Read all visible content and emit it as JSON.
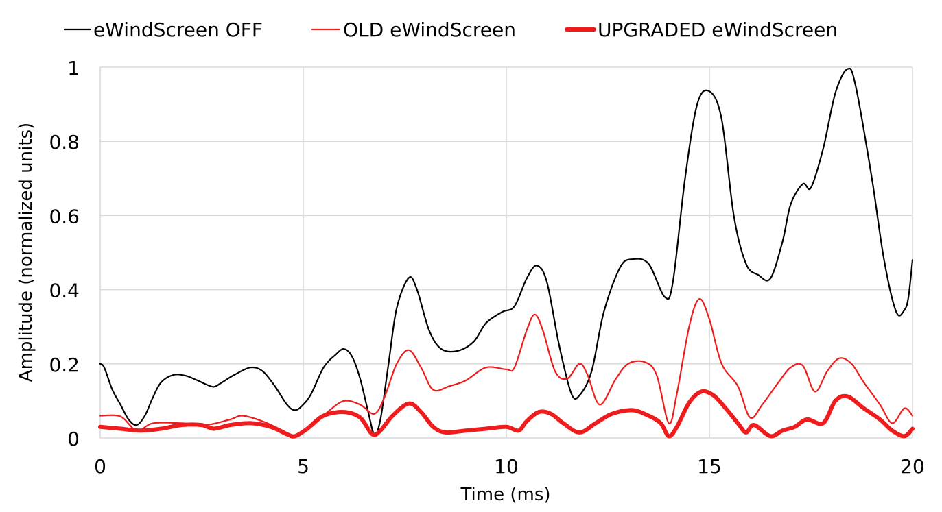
{
  "chart_data": {
    "type": "line",
    "title": "",
    "xlabel": "Time (ms)",
    "ylabel": "Amplitude (normalized units)",
    "xlim": [
      0,
      20
    ],
    "ylim": [
      0,
      1
    ],
    "x_ticks": [
      "0",
      "5",
      "10",
      "15",
      "20"
    ],
    "y_ticks": [
      "0",
      "0.2",
      "0.4",
      "0.6",
      "0.8",
      "1"
    ],
    "grid": true,
    "legend_position": "top",
    "series": [
      {
        "name": "eWindScreen OFF",
        "color": "#000000",
        "style": "thin",
        "points": [
          [
            0,
            0.2
          ],
          [
            0.1,
            0.19
          ],
          [
            0.3,
            0.13
          ],
          [
            0.5,
            0.09
          ],
          [
            0.7,
            0.05
          ],
          [
            0.9,
            0.035
          ],
          [
            1.1,
            0.06
          ],
          [
            1.3,
            0.11
          ],
          [
            1.5,
            0.15
          ],
          [
            1.8,
            0.17
          ],
          [
            2.1,
            0.168
          ],
          [
            2.4,
            0.155
          ],
          [
            2.6,
            0.145
          ],
          [
            2.8,
            0.138
          ],
          [
            3.0,
            0.15
          ],
          [
            3.3,
            0.17
          ],
          [
            3.7,
            0.19
          ],
          [
            4.0,
            0.18
          ],
          [
            4.3,
            0.14
          ],
          [
            4.6,
            0.09
          ],
          [
            4.8,
            0.075
          ],
          [
            5.0,
            0.09
          ],
          [
            5.2,
            0.12
          ],
          [
            5.5,
            0.19
          ],
          [
            5.8,
            0.225
          ],
          [
            6.0,
            0.24
          ],
          [
            6.2,
            0.22
          ],
          [
            6.4,
            0.16
          ],
          [
            6.6,
            0.07
          ],
          [
            6.75,
            0.01
          ],
          [
            6.9,
            0.05
          ],
          [
            7.1,
            0.2
          ],
          [
            7.3,
            0.35
          ],
          [
            7.6,
            0.432
          ],
          [
            7.8,
            0.4
          ],
          [
            8.1,
            0.29
          ],
          [
            8.4,
            0.24
          ],
          [
            8.8,
            0.235
          ],
          [
            9.2,
            0.26
          ],
          [
            9.5,
            0.31
          ],
          [
            9.9,
            0.34
          ],
          [
            10.2,
            0.355
          ],
          [
            10.5,
            0.43
          ],
          [
            10.75,
            0.465
          ],
          [
            11.0,
            0.42
          ],
          [
            11.3,
            0.25
          ],
          [
            11.6,
            0.12
          ],
          [
            11.8,
            0.115
          ],
          [
            12.1,
            0.18
          ],
          [
            12.4,
            0.34
          ],
          [
            12.8,
            0.46
          ],
          [
            13.1,
            0.482
          ],
          [
            13.5,
            0.47
          ],
          [
            13.9,
            0.38
          ],
          [
            14.1,
            0.42
          ],
          [
            14.4,
            0.7
          ],
          [
            14.7,
            0.9
          ],
          [
            15.0,
            0.935
          ],
          [
            15.3,
            0.86
          ],
          [
            15.6,
            0.6
          ],
          [
            15.9,
            0.47
          ],
          [
            16.2,
            0.44
          ],
          [
            16.5,
            0.43
          ],
          [
            16.8,
            0.53
          ],
          [
            17.0,
            0.63
          ],
          [
            17.3,
            0.685
          ],
          [
            17.5,
            0.675
          ],
          [
            17.8,
            0.78
          ],
          [
            18.1,
            0.93
          ],
          [
            18.4,
            0.995
          ],
          [
            18.6,
            0.95
          ],
          [
            19.0,
            0.7
          ],
          [
            19.3,
            0.48
          ],
          [
            19.6,
            0.34
          ],
          [
            19.8,
            0.345
          ],
          [
            19.9,
            0.38
          ],
          [
            20.0,
            0.48
          ]
        ]
      },
      {
        "name": "OLD eWindScreen",
        "color": "#ee1c1c",
        "style": "medium",
        "points": [
          [
            0,
            0.06
          ],
          [
            0.5,
            0.058
          ],
          [
            0.9,
            0.02
          ],
          [
            1.3,
            0.04
          ],
          [
            2.0,
            0.04
          ],
          [
            2.6,
            0.035
          ],
          [
            3.2,
            0.05
          ],
          [
            3.5,
            0.06
          ],
          [
            4.0,
            0.045
          ],
          [
            4.5,
            0.02
          ],
          [
            4.8,
            0.005
          ],
          [
            5.2,
            0.03
          ],
          [
            5.6,
            0.07
          ],
          [
            6.0,
            0.1
          ],
          [
            6.4,
            0.09
          ],
          [
            6.75,
            0.065
          ],
          [
            7.0,
            0.11
          ],
          [
            7.3,
            0.2
          ],
          [
            7.6,
            0.237
          ],
          [
            7.9,
            0.19
          ],
          [
            8.2,
            0.13
          ],
          [
            8.6,
            0.14
          ],
          [
            9.0,
            0.155
          ],
          [
            9.5,
            0.19
          ],
          [
            10.0,
            0.185
          ],
          [
            10.2,
            0.19
          ],
          [
            10.5,
            0.29
          ],
          [
            10.7,
            0.333
          ],
          [
            10.9,
            0.29
          ],
          [
            11.2,
            0.18
          ],
          [
            11.5,
            0.16
          ],
          [
            11.8,
            0.2
          ],
          [
            12.0,
            0.17
          ],
          [
            12.3,
            0.09
          ],
          [
            12.7,
            0.16
          ],
          [
            13.0,
            0.2
          ],
          [
            13.4,
            0.205
          ],
          [
            13.7,
            0.17
          ],
          [
            14.0,
            0.04
          ],
          [
            14.2,
            0.12
          ],
          [
            14.5,
            0.3
          ],
          [
            14.75,
            0.375
          ],
          [
            15.0,
            0.32
          ],
          [
            15.3,
            0.2
          ],
          [
            15.7,
            0.14
          ],
          [
            16.0,
            0.055
          ],
          [
            16.3,
            0.09
          ],
          [
            16.7,
            0.15
          ],
          [
            17.0,
            0.19
          ],
          [
            17.3,
            0.195
          ],
          [
            17.6,
            0.125
          ],
          [
            17.9,
            0.18
          ],
          [
            18.2,
            0.215
          ],
          [
            18.5,
            0.2
          ],
          [
            18.8,
            0.15
          ],
          [
            19.2,
            0.09
          ],
          [
            19.5,
            0.04
          ],
          [
            19.8,
            0.08
          ],
          [
            20.0,
            0.06
          ]
        ]
      },
      {
        "name": "UPGRADED eWindScreen",
        "color": "#ee1c1c",
        "style": "thick",
        "points": [
          [
            0,
            0.03
          ],
          [
            0.5,
            0.025
          ],
          [
            1.0,
            0.02
          ],
          [
            1.5,
            0.025
          ],
          [
            2.0,
            0.035
          ],
          [
            2.5,
            0.035
          ],
          [
            2.8,
            0.025
          ],
          [
            3.2,
            0.035
          ],
          [
            3.7,
            0.04
          ],
          [
            4.2,
            0.03
          ],
          [
            4.6,
            0.01
          ],
          [
            4.8,
            0.005
          ],
          [
            5.1,
            0.025
          ],
          [
            5.5,
            0.06
          ],
          [
            6.0,
            0.07
          ],
          [
            6.4,
            0.055
          ],
          [
            6.7,
            0.01
          ],
          [
            6.9,
            0.02
          ],
          [
            7.2,
            0.06
          ],
          [
            7.6,
            0.093
          ],
          [
            7.9,
            0.07
          ],
          [
            8.2,
            0.03
          ],
          [
            8.5,
            0.015
          ],
          [
            9.0,
            0.02
          ],
          [
            9.5,
            0.025
          ],
          [
            10.0,
            0.03
          ],
          [
            10.3,
            0.02
          ],
          [
            10.5,
            0.045
          ],
          [
            10.8,
            0.07
          ],
          [
            11.1,
            0.065
          ],
          [
            11.4,
            0.04
          ],
          [
            11.8,
            0.015
          ],
          [
            12.2,
            0.04
          ],
          [
            12.6,
            0.065
          ],
          [
            13.1,
            0.075
          ],
          [
            13.5,
            0.06
          ],
          [
            13.8,
            0.04
          ],
          [
            14.0,
            0.005
          ],
          [
            14.2,
            0.03
          ],
          [
            14.5,
            0.095
          ],
          [
            14.8,
            0.125
          ],
          [
            15.1,
            0.115
          ],
          [
            15.4,
            0.08
          ],
          [
            15.7,
            0.04
          ],
          [
            15.9,
            0.015
          ],
          [
            16.1,
            0.035
          ],
          [
            16.5,
            0.005
          ],
          [
            16.8,
            0.02
          ],
          [
            17.1,
            0.03
          ],
          [
            17.4,
            0.05
          ],
          [
            17.8,
            0.04
          ],
          [
            18.1,
            0.1
          ],
          [
            18.4,
            0.112
          ],
          [
            18.8,
            0.08
          ],
          [
            19.2,
            0.05
          ],
          [
            19.5,
            0.02
          ],
          [
            19.8,
            0.005
          ],
          [
            20.0,
            0.025
          ]
        ]
      }
    ]
  }
}
